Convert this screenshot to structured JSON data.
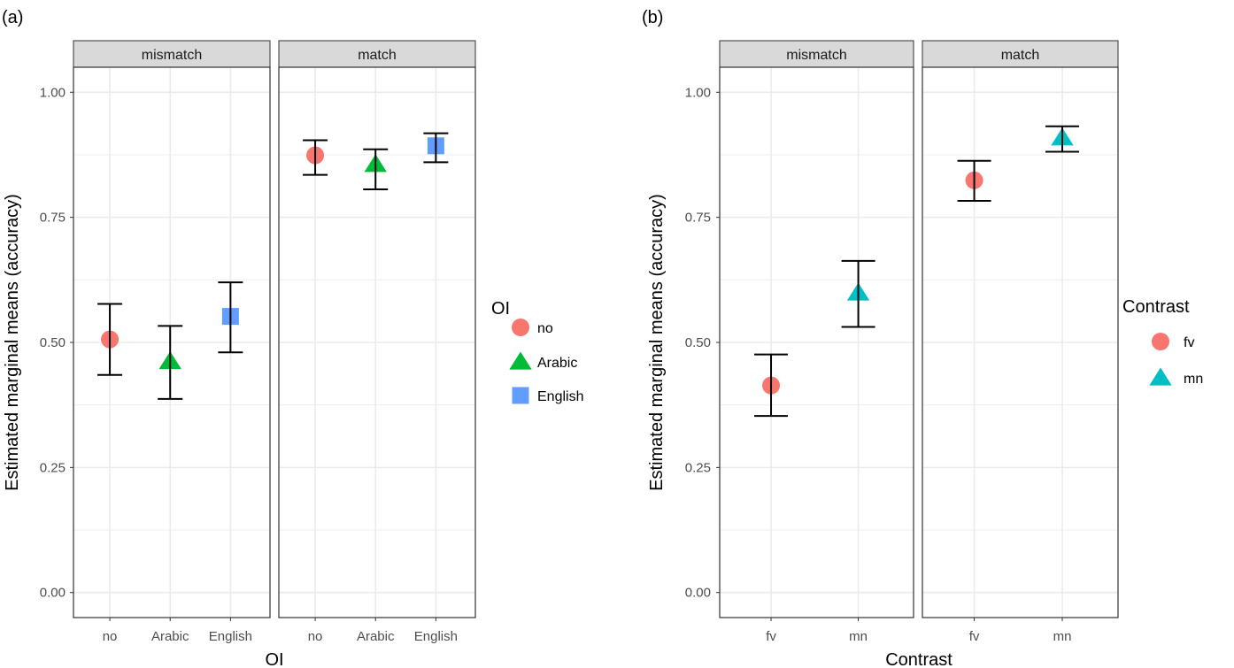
{
  "chart_data": [
    {
      "type": "scatter",
      "panel_label": "(a)",
      "xlabel": "OI",
      "ylabel": "Estimated marginal means (accuracy)",
      "ylim": [
        -0.05,
        1.05
      ],
      "yticks": [
        "0.00",
        "0.25",
        "0.50",
        "0.75",
        "1.00"
      ],
      "grid": true,
      "categories": [
        "no",
        "Arabic",
        "English"
      ],
      "facets": [
        {
          "label": "mismatch",
          "points": [
            {
              "x": "no",
              "y": 0.506,
              "lower": 0.435,
              "upper": 0.577
            },
            {
              "x": "Arabic",
              "y": 0.462,
              "lower": 0.387,
              "upper": 0.533
            },
            {
              "x": "English",
              "y": 0.552,
              "lower": 0.48,
              "upper": 0.62
            }
          ]
        },
        {
          "label": "match",
          "points": [
            {
              "x": "no",
              "y": 0.874,
              "lower": 0.835,
              "upper": 0.904
            },
            {
              "x": "Arabic",
              "y": 0.856,
              "lower": 0.806,
              "upper": 0.886
            },
            {
              "x": "English",
              "y": 0.893,
              "lower": 0.86,
              "upper": 0.918
            }
          ]
        }
      ],
      "legend": {
        "title": "OI",
        "placement": "right",
        "entries": [
          {
            "name": "no",
            "shape": "circle",
            "color": "#F8766D"
          },
          {
            "name": "Arabic",
            "shape": "triangle",
            "color": "#00BA38"
          },
          {
            "name": "English",
            "shape": "square",
            "color": "#619CFF"
          }
        ]
      }
    },
    {
      "type": "scatter",
      "panel_label": "(b)",
      "xlabel": "Contrast",
      "ylabel": "Estimated marginal means (accuracy)",
      "ylim": [
        -0.05,
        1.05
      ],
      "yticks": [
        "0.00",
        "0.25",
        "0.50",
        "0.75",
        "1.00"
      ],
      "grid": true,
      "categories": [
        "fv",
        "mn"
      ],
      "facets": [
        {
          "label": "mismatch",
          "points": [
            {
              "x": "fv",
              "y": 0.414,
              "lower": 0.353,
              "upper": 0.476
            },
            {
              "x": "mn",
              "y": 0.599,
              "lower": 0.531,
              "upper": 0.663
            }
          ]
        },
        {
          "label": "match",
          "points": [
            {
              "x": "fv",
              "y": 0.824,
              "lower": 0.783,
              "upper": 0.863
            },
            {
              "x": "mn",
              "y": 0.909,
              "lower": 0.881,
              "upper": 0.932
            }
          ]
        }
      ],
      "legend": {
        "title": "Contrast",
        "placement": "right",
        "entries": [
          {
            "name": "fv",
            "shape": "circle",
            "color": "#F8766D"
          },
          {
            "name": "mn",
            "shape": "triangle",
            "color": "#00BFC4"
          }
        ]
      }
    }
  ]
}
